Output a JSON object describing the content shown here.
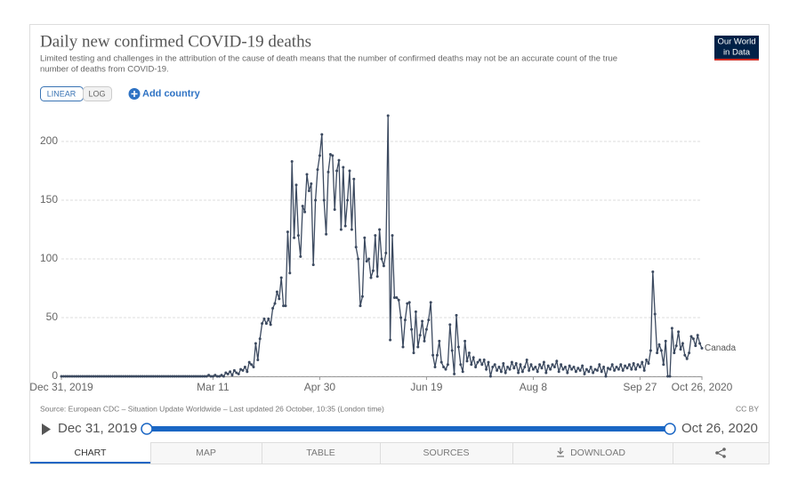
{
  "chart_data": {
    "type": "line",
    "title": "Daily new confirmed COVID-19 deaths",
    "subtitle": [
      "Limited testing and challenges in the attribution of the cause of death means that the number of confirmed deaths may not be an accurate count of the true",
      "number of deaths from COVID-19."
    ],
    "logo": [
      "Our World",
      "in Data"
    ],
    "scale_buttons": [
      "LINEAR",
      "LOG"
    ],
    "add_country": "Add country",
    "source": "Source: European CDC – Situation Update Worldwide – Last updated 26 October, 10:35 (London time)",
    "license": "CC BY",
    "timeline": {
      "start": "Dec 31, 2019",
      "end": "Oct 26, 2020"
    },
    "tabs": [
      "CHART",
      "MAP",
      "TABLE",
      "SOURCES",
      "DOWNLOAD"
    ],
    "log_scale": false,
    "grid": true,
    "xlim": [
      "2019-12-31",
      "2020-10-26"
    ],
    "xticks": [
      {
        "value": "2019-12-31",
        "label": "Dec 31, 2019"
      },
      {
        "value": "2020-03-11",
        "label": "Mar 11"
      },
      {
        "value": "2020-04-30",
        "label": "Apr 30"
      },
      {
        "value": "2020-06-19",
        "label": "Jun 19"
      },
      {
        "value": "2020-08-08",
        "label": "Aug 8"
      },
      {
        "value": "2020-09-27",
        "label": "Sep 27"
      },
      {
        "value": "2020-10-26",
        "label": "Oct 26, 2020"
      }
    ],
    "ylim": [
      0,
      225
    ],
    "yticks": [
      0,
      50,
      100,
      150,
      200
    ],
    "x": [
      "2019-12-31",
      "2020-01-01",
      "2020-01-02",
      "2020-01-03",
      "2020-01-04",
      "2020-01-05",
      "2020-01-06",
      "2020-01-07",
      "2020-01-08",
      "2020-01-09",
      "2020-01-10",
      "2020-01-11",
      "2020-01-12",
      "2020-01-13",
      "2020-01-14",
      "2020-01-15",
      "2020-01-16",
      "2020-01-17",
      "2020-01-18",
      "2020-01-19",
      "2020-01-20",
      "2020-01-21",
      "2020-01-22",
      "2020-01-23",
      "2020-01-24",
      "2020-01-25",
      "2020-01-26",
      "2020-01-27",
      "2020-01-28",
      "2020-01-29",
      "2020-01-30",
      "2020-01-31",
      "2020-02-01",
      "2020-02-02",
      "2020-02-03",
      "2020-02-04",
      "2020-02-05",
      "2020-02-06",
      "2020-02-07",
      "2020-02-08",
      "2020-02-09",
      "2020-02-10",
      "2020-02-11",
      "2020-02-12",
      "2020-02-13",
      "2020-02-14",
      "2020-02-15",
      "2020-02-16",
      "2020-02-17",
      "2020-02-18",
      "2020-02-19",
      "2020-02-20",
      "2020-02-21",
      "2020-02-22",
      "2020-02-23",
      "2020-02-24",
      "2020-02-25",
      "2020-02-26",
      "2020-02-27",
      "2020-02-28",
      "2020-02-29",
      "2020-03-01",
      "2020-03-02",
      "2020-03-03",
      "2020-03-04",
      "2020-03-05",
      "2020-03-06",
      "2020-03-07",
      "2020-03-08",
      "2020-03-09",
      "2020-03-10",
      "2020-03-11",
      "2020-03-12",
      "2020-03-13",
      "2020-03-14",
      "2020-03-15",
      "2020-03-16",
      "2020-03-17",
      "2020-03-18",
      "2020-03-19",
      "2020-03-20",
      "2020-03-21",
      "2020-03-22",
      "2020-03-23",
      "2020-03-24",
      "2020-03-25",
      "2020-03-26",
      "2020-03-27",
      "2020-03-28",
      "2020-03-29",
      "2020-03-30",
      "2020-03-31",
      "2020-04-01",
      "2020-04-02",
      "2020-04-03",
      "2020-04-04",
      "2020-04-05",
      "2020-04-06",
      "2020-04-07",
      "2020-04-08",
      "2020-04-09",
      "2020-04-10",
      "2020-04-11",
      "2020-04-12",
      "2020-04-13",
      "2020-04-14",
      "2020-04-15",
      "2020-04-16",
      "2020-04-17",
      "2020-04-18",
      "2020-04-19",
      "2020-04-20",
      "2020-04-21",
      "2020-04-22",
      "2020-04-23",
      "2020-04-24",
      "2020-04-25",
      "2020-04-26",
      "2020-04-27",
      "2020-04-28",
      "2020-04-29",
      "2020-04-30",
      "2020-05-01",
      "2020-05-02",
      "2020-05-03",
      "2020-05-04",
      "2020-05-05",
      "2020-05-06",
      "2020-05-07",
      "2020-05-08",
      "2020-05-09",
      "2020-05-10",
      "2020-05-11",
      "2020-05-12",
      "2020-05-13",
      "2020-05-14",
      "2020-05-15",
      "2020-05-16",
      "2020-05-17",
      "2020-05-18",
      "2020-05-19",
      "2020-05-20",
      "2020-05-21",
      "2020-05-22",
      "2020-05-23",
      "2020-05-24",
      "2020-05-25",
      "2020-05-26",
      "2020-05-27",
      "2020-05-28",
      "2020-05-29",
      "2020-05-30",
      "2020-05-31",
      "2020-06-01",
      "2020-06-02",
      "2020-06-03",
      "2020-06-04",
      "2020-06-05",
      "2020-06-06",
      "2020-06-07",
      "2020-06-08",
      "2020-06-09",
      "2020-06-10",
      "2020-06-11",
      "2020-06-12",
      "2020-06-13",
      "2020-06-14",
      "2020-06-15",
      "2020-06-16",
      "2020-06-17",
      "2020-06-18",
      "2020-06-19",
      "2020-06-20",
      "2020-06-21",
      "2020-06-22",
      "2020-06-23",
      "2020-06-24",
      "2020-06-25",
      "2020-06-26",
      "2020-06-27",
      "2020-06-28",
      "2020-06-29",
      "2020-06-30",
      "2020-07-01",
      "2020-07-02",
      "2020-07-03",
      "2020-07-04",
      "2020-07-05",
      "2020-07-06",
      "2020-07-07",
      "2020-07-08",
      "2020-07-09",
      "2020-07-10",
      "2020-07-11",
      "2020-07-12",
      "2020-07-13",
      "2020-07-14",
      "2020-07-15",
      "2020-07-16",
      "2020-07-17",
      "2020-07-18",
      "2020-07-19",
      "2020-07-20",
      "2020-07-21",
      "2020-07-22",
      "2020-07-23",
      "2020-07-24",
      "2020-07-25",
      "2020-07-26",
      "2020-07-27",
      "2020-07-28",
      "2020-07-29",
      "2020-07-30",
      "2020-07-31",
      "2020-08-01",
      "2020-08-02",
      "2020-08-03",
      "2020-08-04",
      "2020-08-05",
      "2020-08-06",
      "2020-08-07",
      "2020-08-08",
      "2020-08-09",
      "2020-08-10",
      "2020-08-11",
      "2020-08-12",
      "2020-08-13",
      "2020-08-14",
      "2020-08-15",
      "2020-08-16",
      "2020-08-17",
      "2020-08-18",
      "2020-08-19",
      "2020-08-20",
      "2020-08-21",
      "2020-08-22",
      "2020-08-23",
      "2020-08-24",
      "2020-08-25",
      "2020-08-26",
      "2020-08-27",
      "2020-08-28",
      "2020-08-29",
      "2020-08-30",
      "2020-08-31",
      "2020-09-01",
      "2020-09-02",
      "2020-09-03",
      "2020-09-04",
      "2020-09-05",
      "2020-09-06",
      "2020-09-07",
      "2020-09-08",
      "2020-09-09",
      "2020-09-10",
      "2020-09-11",
      "2020-09-12",
      "2020-09-13",
      "2020-09-14",
      "2020-09-15",
      "2020-09-16",
      "2020-09-17",
      "2020-09-18",
      "2020-09-19",
      "2020-09-20",
      "2020-09-21",
      "2020-09-22",
      "2020-09-23",
      "2020-09-24",
      "2020-09-25",
      "2020-09-26",
      "2020-09-27",
      "2020-09-28",
      "2020-09-29",
      "2020-09-30",
      "2020-10-01",
      "2020-10-02",
      "2020-10-03",
      "2020-10-04",
      "2020-10-05",
      "2020-10-06",
      "2020-10-07",
      "2020-10-08",
      "2020-10-09",
      "2020-10-10",
      "2020-10-11",
      "2020-10-12",
      "2020-10-13",
      "2020-10-14",
      "2020-10-15",
      "2020-10-16",
      "2020-10-17",
      "2020-10-18",
      "2020-10-19",
      "2020-10-20",
      "2020-10-21",
      "2020-10-22",
      "2020-10-23",
      "2020-10-24",
      "2020-10-25",
      "2020-10-26"
    ],
    "series": [
      {
        "name": "Canada",
        "color": "#3c4a60",
        "values": [
          0,
          0,
          0,
          0,
          0,
          0,
          0,
          0,
          0,
          0,
          0,
          0,
          0,
          0,
          0,
          0,
          0,
          0,
          0,
          0,
          0,
          0,
          0,
          0,
          0,
          0,
          0,
          0,
          0,
          0,
          0,
          0,
          0,
          0,
          0,
          0,
          0,
          0,
          0,
          0,
          0,
          0,
          0,
          0,
          0,
          0,
          0,
          0,
          0,
          0,
          0,
          0,
          0,
          0,
          0,
          0,
          0,
          0,
          0,
          0,
          0,
          0,
          0,
          0,
          0,
          0,
          0,
          0,
          0,
          1,
          0,
          0,
          1,
          0,
          0,
          1,
          0,
          3,
          2,
          4,
          1,
          5,
          3,
          2,
          6,
          5,
          8,
          4,
          12,
          10,
          8,
          28,
          14,
          32,
          45,
          49,
          45,
          49,
          44,
          58,
          62,
          72,
          66,
          84,
          60,
          60,
          123,
          88,
          183,
          118,
          163,
          120,
          102,
          145,
          140,
          172,
          158,
          164,
          95,
          150,
          176,
          188,
          206,
          150,
          121,
          174,
          189,
          188,
          142,
          175,
          184,
          125,
          178,
          128,
          150,
          175,
          125,
          168,
          110,
          100,
          60,
          68,
          118,
          98,
          100,
          84,
          90,
          120,
          85,
          125,
          100,
          94,
          105,
          222,
          31,
          120,
          67,
          67,
          65,
          50,
          25,
          48,
          62,
          63,
          40,
          20,
          55,
          25,
          35,
          47,
          30,
          40,
          48,
          63,
          18,
          8,
          18,
          30,
          12,
          8,
          6,
          10,
          44,
          22,
          2,
          52,
          25,
          10,
          4,
          30,
          13,
          20,
          10,
          16,
          8,
          12,
          14,
          10,
          14,
          6,
          12,
          0,
          8,
          10,
          5,
          8,
          4,
          11,
          3,
          8,
          6,
          12,
          7,
          11,
          3,
          10,
          4,
          8,
          14,
          5,
          10,
          6,
          8,
          4,
          10,
          7,
          12,
          3,
          9,
          6,
          10,
          8,
          13,
          4,
          10,
          6,
          8,
          3,
          9,
          6,
          8,
          4,
          7,
          5,
          9,
          2,
          6,
          4,
          8,
          3,
          6,
          5,
          10,
          4,
          8,
          0,
          7,
          6,
          10,
          5,
          8,
          6,
          10,
          5,
          9,
          7,
          10,
          6,
          11,
          6,
          10,
          8,
          12,
          5,
          14,
          11,
          22,
          89,
          53,
          20,
          27,
          22,
          10,
          30,
          0,
          0,
          41,
          20,
          26,
          38,
          23,
          28,
          18,
          15,
          20,
          34,
          32,
          26,
          35,
          28,
          24
        ]
      }
    ]
  }
}
